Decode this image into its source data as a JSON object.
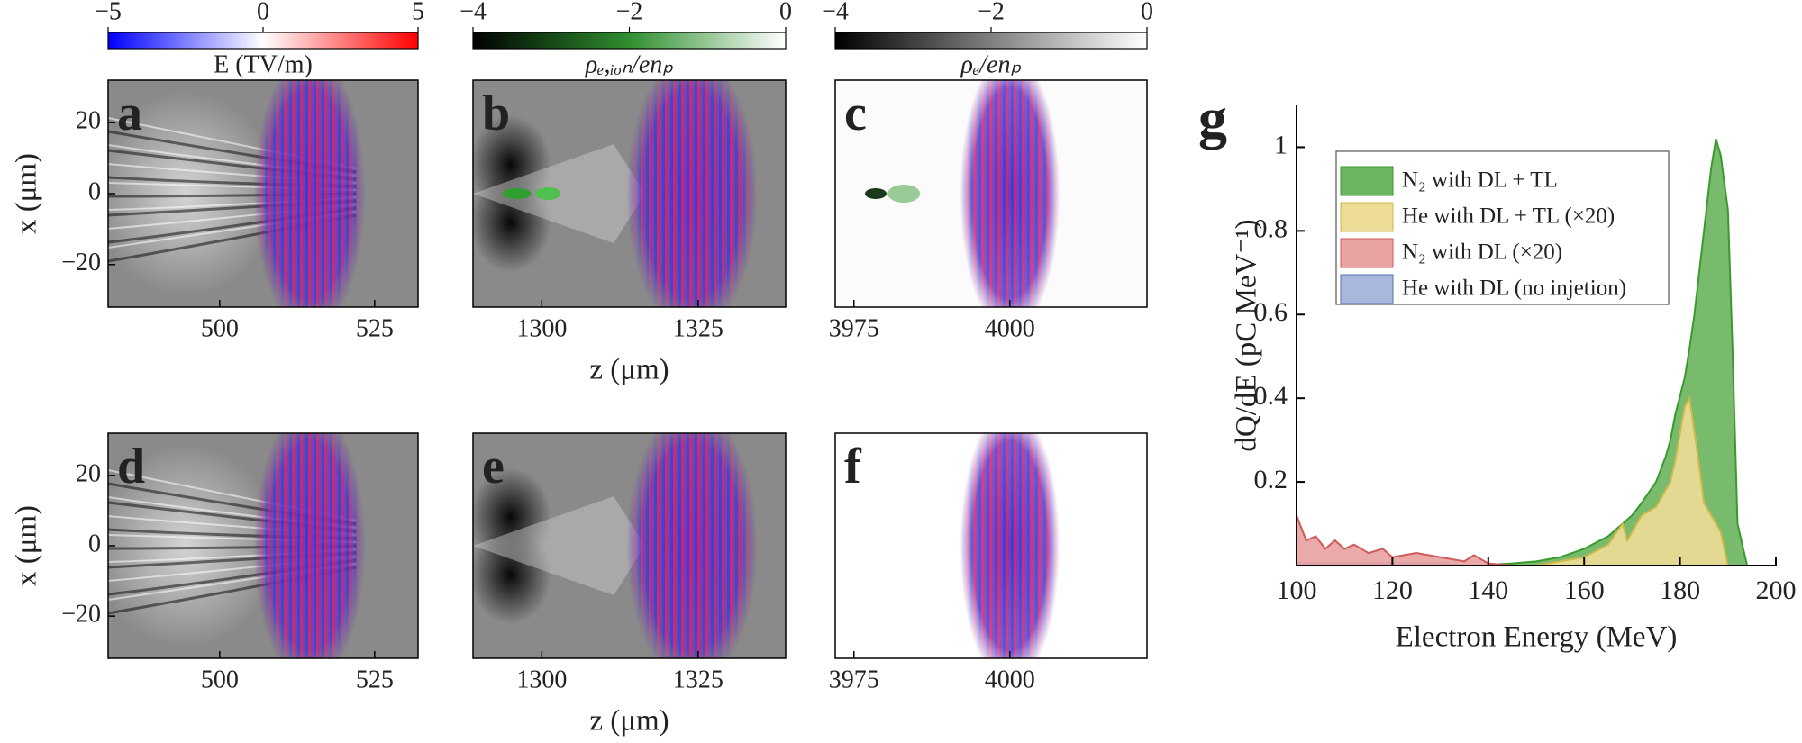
{
  "chart_data": [
    {
      "type": "image",
      "label": "a",
      "letter_color": "#ffffff",
      "background": "#8a8a8a",
      "xlim": [
        482,
        532
      ],
      "xticks": [
        500,
        525
      ],
      "ylim": [
        -32,
        32
      ],
      "yticks": [
        {
          "value": -20,
          "label": "−20"
        },
        0,
        20
      ],
      "ylabel": "x (μm)",
      "colorbar": {
        "label": "E (TV/m)",
        "lim": [
          -5,
          5
        ],
        "ticks": [
          {
            "value": -5,
            "label": "−5"
          },
          0,
          5
        ],
        "colors": [
          "#0000ff",
          "#ffffff",
          "#ff0000"
        ]
      }
    },
    {
      "type": "image",
      "label": "b",
      "letter_color": "#ffffff",
      "background": "#8a8a8a",
      "xlim": [
        1289,
        1339
      ],
      "xticks": [
        1300,
        1325
      ],
      "ylim": [
        -32,
        32
      ],
      "xlabel": "z (μm)",
      "colorbar": {
        "label": "ρₑ,ᵢₒₙ/enₚ",
        "lim": [
          -4,
          0
        ],
        "ticks": [
          {
            "value": -4,
            "label": "−4"
          },
          {
            "value": -2,
            "label": "−2"
          },
          0
        ],
        "colors": [
          "#000000",
          "#2f8f2f",
          "#ffffff"
        ]
      }
    },
    {
      "type": "image",
      "label": "c",
      "letter_color": "#000000",
      "background": "#fbfbfb",
      "xlim": [
        3972,
        4022
      ],
      "xticks": [
        3975,
        4000
      ],
      "ylim": [
        -32,
        32
      ],
      "colorbar": {
        "label": "ρₑ/enₚ",
        "lim": [
          -4,
          0
        ],
        "ticks": [
          {
            "value": -4,
            "label": "−4"
          },
          {
            "value": -2,
            "label": "−2"
          },
          0
        ],
        "colors": [
          "#000000",
          "#ffffff"
        ]
      }
    },
    {
      "type": "image",
      "label": "d",
      "letter_color": "#ffffff",
      "background": "#8a8a8a",
      "xlim": [
        482,
        532
      ],
      "xticks": [
        500,
        525
      ],
      "ylim": [
        -32,
        32
      ],
      "yticks": [
        {
          "value": -20,
          "label": "−20"
        },
        0,
        20
      ],
      "ylabel": "x (μm)"
    },
    {
      "type": "image",
      "label": "e",
      "letter_color": "#ffffff",
      "background": "#8a8a8a",
      "xlim": [
        1289,
        1339
      ],
      "xticks": [
        1300,
        1325
      ],
      "ylim": [
        -32,
        32
      ],
      "xlabel": "z (μm)"
    },
    {
      "type": "image",
      "label": "f",
      "letter_color": "#000000",
      "background": "#ffffff",
      "xlim": [
        3972,
        4022
      ],
      "xticks": [
        3975,
        4000
      ],
      "ylim": [
        -32,
        32
      ]
    },
    {
      "type": "area",
      "label": "g",
      "xlabel": "Electron Energy (MeV)",
      "ylabel": "dQ/dE (pC MeV⁻¹)",
      "xlim": [
        100,
        200
      ],
      "xticks": [
        100,
        120,
        140,
        160,
        180,
        200
      ],
      "ylim": [
        0,
        1.1
      ],
      "yticks": [
        0.2,
        0.4,
        0.6,
        0.8,
        1.0
      ],
      "x": [
        100,
        102,
        104,
        106,
        108,
        110,
        112,
        115,
        118,
        120,
        125,
        130,
        135,
        137,
        140,
        145,
        150,
        155,
        160,
        165,
        168,
        169,
        170,
        172,
        175,
        177,
        178,
        179,
        181,
        182,
        183,
        183.5,
        185,
        186.5,
        187.5,
        188.5,
        190,
        191,
        192,
        194,
        200
      ],
      "series": [
        {
          "name": "N₂ with DL + TL",
          "color": "#6db560",
          "edge": "#3a9a2e",
          "values": [
            0,
            0,
            0,
            0,
            0,
            0,
            0,
            0,
            0,
            0,
            0,
            0,
            0,
            0,
            0.002,
            0.005,
            0.01,
            0.02,
            0.04,
            0.07,
            0.1,
            0.11,
            0.12,
            0.15,
            0.2,
            0.26,
            0.3,
            0.36,
            0.45,
            0.52,
            0.6,
            0.65,
            0.8,
            0.95,
            1.02,
            0.98,
            0.85,
            0.5,
            0.1,
            0,
            0
          ]
        },
        {
          "name": "He  with DL + TL (×20)",
          "color": "#ecdc96",
          "edge": "#d2b84a",
          "values": [
            0,
            0,
            0,
            0,
            0,
            0,
            0,
            0,
            0,
            0,
            0,
            0,
            0,
            0,
            0,
            0,
            0,
            0.01,
            0.02,
            0.05,
            0.1,
            0.06,
            0.08,
            0.12,
            0.14,
            0.18,
            0.2,
            0.25,
            0.38,
            0.4,
            0.32,
            0.28,
            0.15,
            0.12,
            0.1,
            0.08,
            0,
            0,
            0,
            0,
            0
          ]
        },
        {
          "name": "N₂ with DL (×20)",
          "color": "#e9a3a3",
          "edge": "#cf5a5a",
          "values": [
            0.12,
            0.06,
            0.07,
            0.04,
            0.06,
            0.04,
            0.05,
            0.03,
            0.04,
            0.02,
            0.03,
            0.02,
            0.01,
            0.025,
            0.005,
            0,
            0,
            0,
            0,
            0,
            0,
            0,
            0,
            0,
            0,
            0,
            0,
            0,
            0,
            0,
            0,
            0,
            0,
            0,
            0,
            0,
            0,
            0,
            0,
            0,
            0
          ]
        },
        {
          "name": "He  with DL (no injetion)",
          "color": "#a9b7dc",
          "edge": "#5570b0",
          "values": [
            0.006,
            0.006,
            0.006,
            0.006,
            0.006,
            0.006,
            0.006,
            0.006,
            0.006,
            0.006,
            0.006,
            0.006,
            0,
            0,
            0,
            0,
            0,
            0,
            0,
            0,
            0,
            0,
            0,
            0,
            0,
            0,
            0,
            0,
            0,
            0,
            0,
            0,
            0,
            0,
            0,
            0,
            0,
            0,
            0,
            0,
            0
          ]
        }
      ]
    }
  ]
}
